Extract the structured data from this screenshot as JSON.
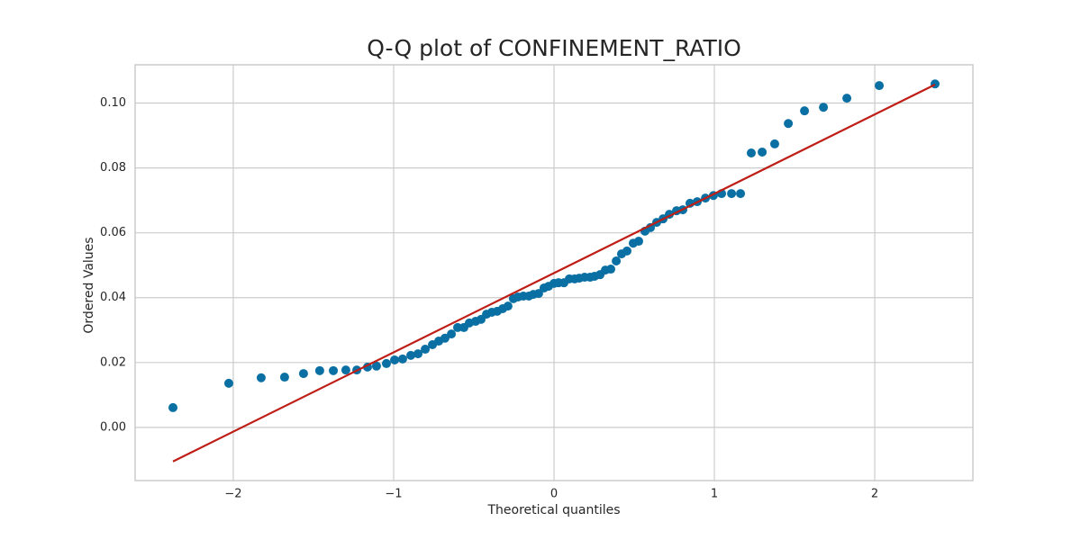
{
  "chart_data": {
    "type": "scatter",
    "title": "Q-Q plot of CONFINEMENT_RATIO",
    "x_label": "Theoretical quantiles",
    "y_label": "Ordered Values",
    "color": "#0a6fa3",
    "x": [
      -2.376,
      -2.028,
      -1.826,
      -1.68,
      -1.562,
      -1.461,
      -1.376,
      -1.298,
      -1.23,
      -1.163,
      -1.107,
      -1.045,
      -0.994,
      -0.944,
      -0.893,
      -0.848,
      -0.803,
      -0.758,
      -0.719,
      -0.68,
      -0.64,
      -0.601,
      -0.562,
      -0.528,
      -0.489,
      -0.455,
      -0.421,
      -0.388,
      -0.354,
      -0.32,
      -0.287,
      -0.253,
      -0.225,
      -0.191,
      -0.157,
      -0.129,
      -0.096,
      -0.062,
      -0.034,
      0,
      0.028,
      0.062,
      0.096,
      0.129,
      0.157,
      0.191,
      0.225,
      0.253,
      0.287,
      0.32,
      0.354,
      0.388,
      0.421,
      0.455,
      0.494,
      0.528,
      0.567,
      0.601,
      0.64,
      0.68,
      0.719,
      0.764,
      0.803,
      0.848,
      0.893,
      0.944,
      0.994,
      1.045,
      1.107,
      1.163,
      1.23,
      1.298,
      1.376,
      1.461,
      1.562,
      1.68,
      1.826,
      2.028,
      2.376
    ],
    "values": [
      0.0061,
      0.0136,
      0.0153,
      0.0155,
      0.0166,
      0.0175,
      0.0175,
      0.0177,
      0.0177,
      0.0186,
      0.0189,
      0.0197,
      0.0208,
      0.0211,
      0.0222,
      0.0227,
      0.0241,
      0.0255,
      0.0266,
      0.0275,
      0.0288,
      0.0308,
      0.0308,
      0.0322,
      0.0327,
      0.0333,
      0.0349,
      0.0355,
      0.0358,
      0.0366,
      0.0374,
      0.0397,
      0.0402,
      0.0405,
      0.0405,
      0.041,
      0.0413,
      0.043,
      0.0435,
      0.0444,
      0.0446,
      0.0446,
      0.0458,
      0.0458,
      0.046,
      0.0463,
      0.0463,
      0.0466,
      0.0471,
      0.0485,
      0.0488,
      0.0513,
      0.0535,
      0.0544,
      0.0568,
      0.0574,
      0.0605,
      0.0616,
      0.0632,
      0.0643,
      0.0657,
      0.0668,
      0.0671,
      0.0691,
      0.0696,
      0.0707,
      0.0715,
      0.0721,
      0.0721,
      0.0721,
      0.0846,
      0.0849,
      0.0874,
      0.0937,
      0.0976,
      0.0987,
      0.1015,
      0.1054,
      0.1059
    ],
    "fit_line": {
      "x": [
        -2.376,
        2.376
      ],
      "y": [
        -0.0105,
        0.1057
      ],
      "color": "#bf1e17"
    },
    "xlim": [
      -2.612,
      2.612
    ],
    "ylim": [
      -0.0164,
      0.1118
    ],
    "xticks": [
      {
        "value": -2,
        "label": "−2"
      },
      {
        "value": -1,
        "label": "−1"
      },
      0,
      1,
      2
    ],
    "yticks": [
      {
        "value": 0,
        "label": "0.00"
      },
      0.02,
      0.04,
      0.06,
      0.08,
      {
        "value": 0.1,
        "label": "0.10"
      }
    ],
    "grid": true
  }
}
